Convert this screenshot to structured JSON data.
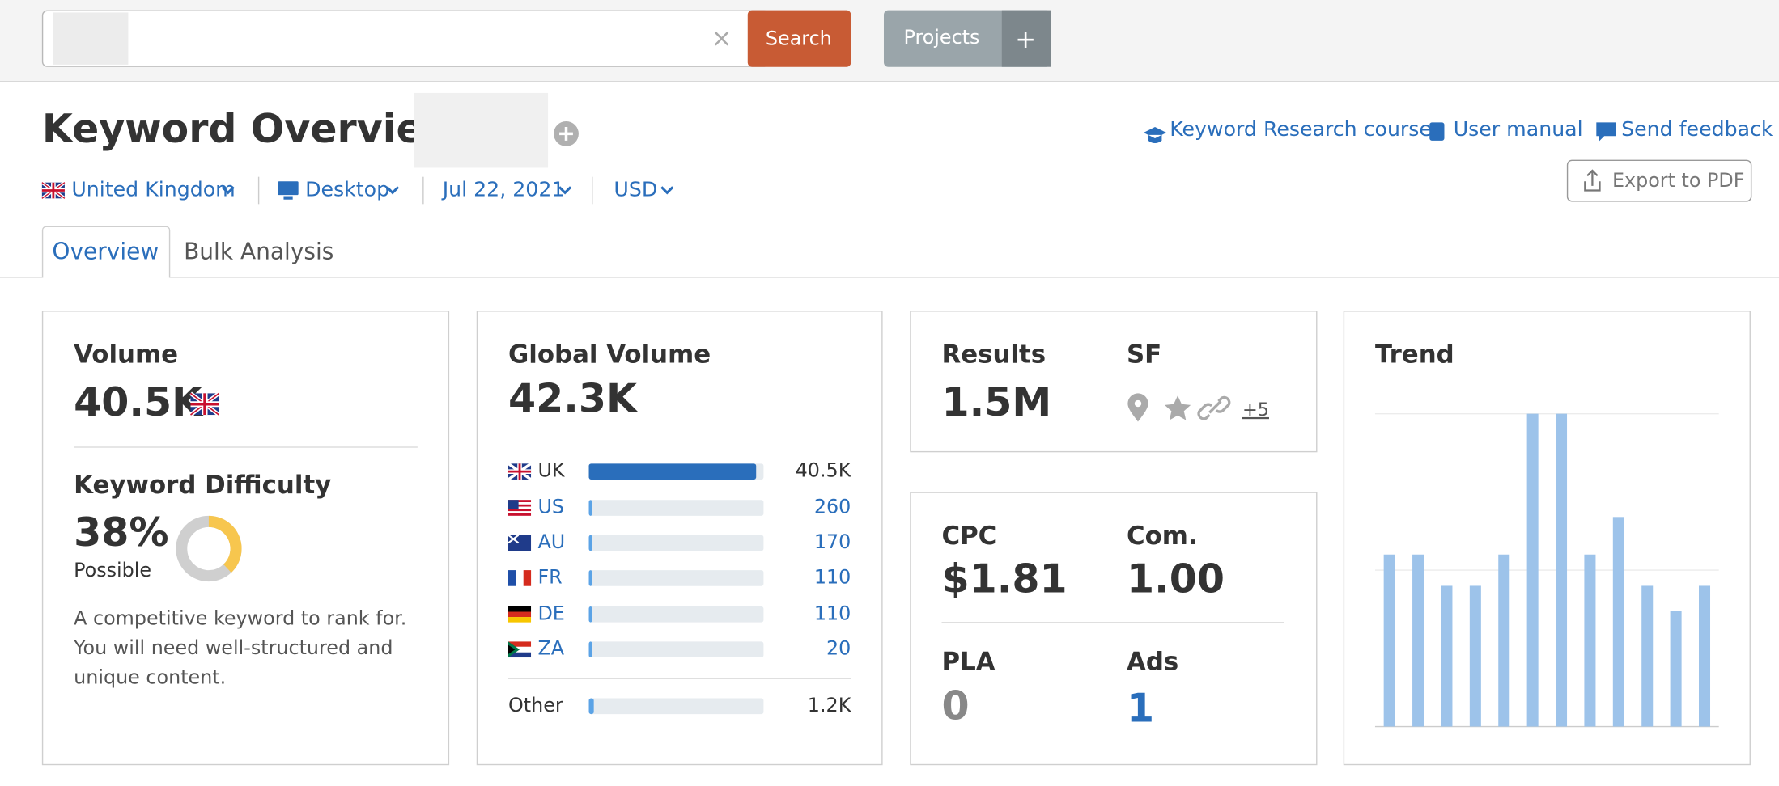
{
  "search": {
    "clear": "×",
    "button": "Search"
  },
  "projects": {
    "button": "Projects",
    "add": "+"
  },
  "header": {
    "title": "Keyword Overview:",
    "links": [
      "Keyword Research course",
      "User manual",
      "Send feedback"
    ],
    "export": "Export to PDF"
  },
  "filters": [
    "United Kingdom",
    "Desktop",
    "Jul 22, 2021",
    "USD"
  ],
  "tabs": [
    "Overview",
    "Bulk Analysis"
  ],
  "volume": {
    "label": "Volume",
    "value": "40.5K"
  },
  "keyword_difficulty": {
    "label": "Keyword Difficulty",
    "value": 38,
    "value_label": "38%",
    "rating": "Possible",
    "description": "A competitive keyword to rank for. You will need well-structured and unique content."
  },
  "global_volume": {
    "label": "Global Volume",
    "value": 42300,
    "value_label": "42.3K",
    "countries": [
      "UK",
      "US",
      "AU",
      "FR",
      "DE",
      "ZA",
      "Other"
    ],
    "values": [
      40500,
      260,
      170,
      110,
      110,
      20,
      1200
    ],
    "value_labels": [
      "40.5K",
      "260",
      "170",
      "110",
      "110",
      "20",
      "1.2K"
    ]
  },
  "results": {
    "label": "Results",
    "value": "1.5M"
  },
  "sf": {
    "label": "SF",
    "more": "+5"
  },
  "cpc": {
    "label": "CPC",
    "value": "$1.81"
  },
  "competition": {
    "label": "Com.",
    "value": "1.00"
  },
  "pla": {
    "label": "PLA",
    "value": 0
  },
  "ads": {
    "label": "Ads",
    "value": 1
  },
  "trend": {
    "label": "Trend",
    "values": [
      55,
      55,
      45,
      45,
      55,
      100,
      100,
      55,
      67,
      45,
      37,
      45
    ],
    "ylim": [
      0,
      100
    ],
    "yticks": [
      0,
      50,
      100
    ]
  }
}
